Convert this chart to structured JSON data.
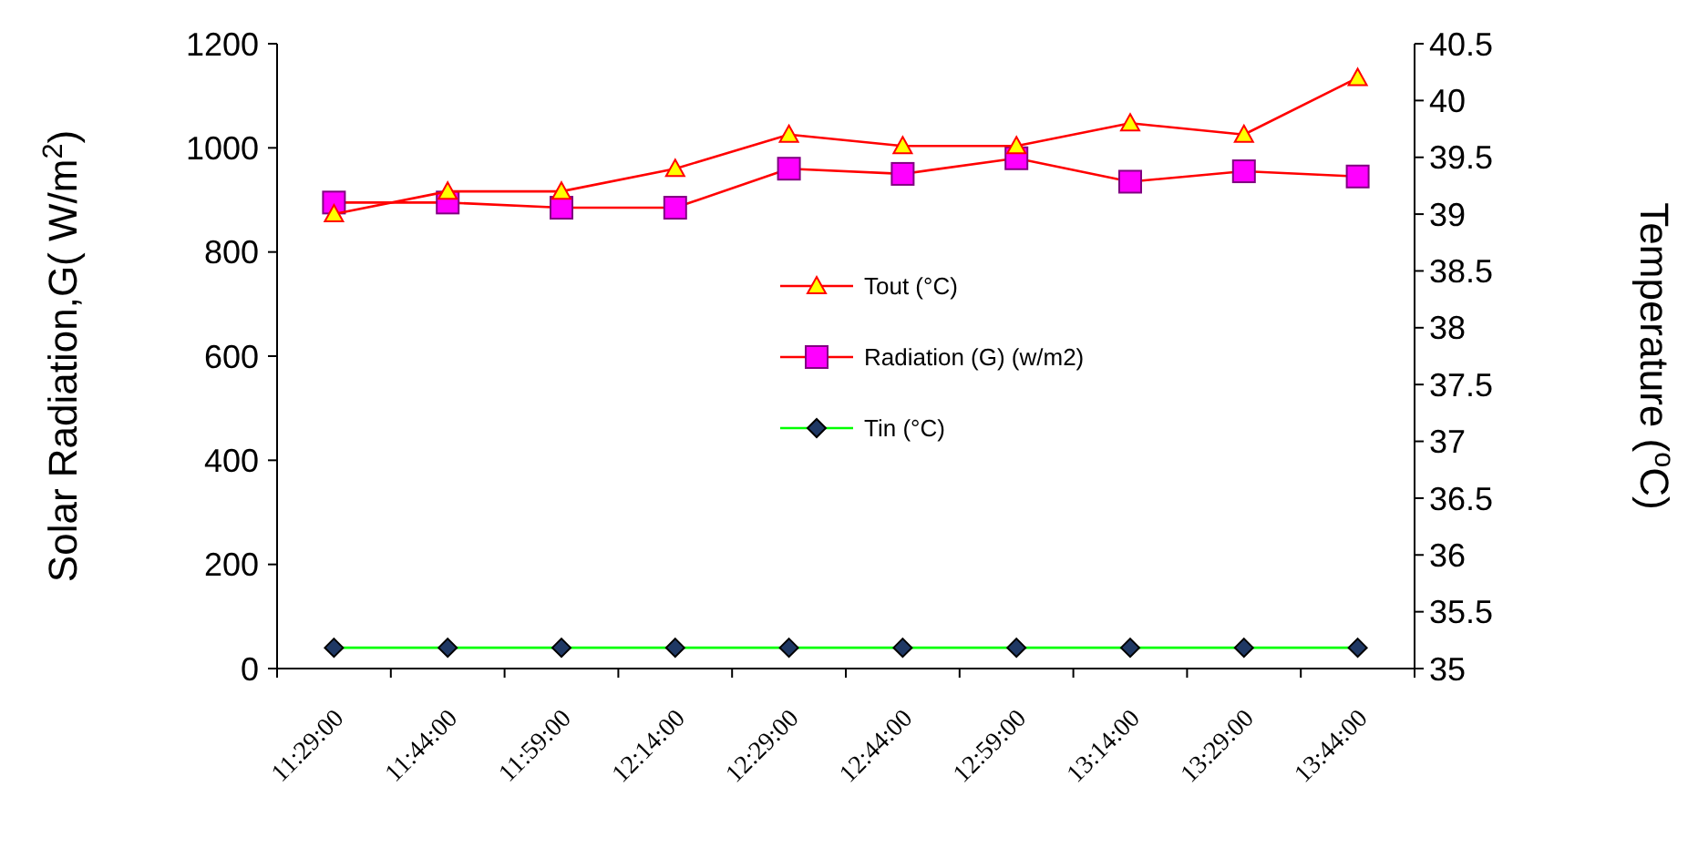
{
  "chart_data": {
    "type": "line",
    "categories": [
      "11:29:00",
      "11:44:00",
      "11:59:00",
      "12:14:00",
      "12:29:00",
      "12:44:00",
      "12:59:00",
      "13:14:00",
      "13:29:00",
      "13:44:00"
    ],
    "series": [
      {
        "name": "Tout (°C)",
        "color": "#ff0000",
        "marker": "triangle",
        "axis": "y2",
        "values": [
          39.0,
          39.2,
          39.2,
          39.4,
          39.7,
          39.6,
          39.6,
          39.8,
          39.7,
          40.2
        ]
      },
      {
        "name": "Radiation (G) (w/m2)",
        "color": "#ff0000",
        "marker": "square",
        "values": [
          895,
          895,
          885,
          885,
          960,
          950,
          980,
          935,
          955,
          945
        ]
      },
      {
        "name": "Tin (°C)",
        "color": "#00ff00",
        "marker": "diamond",
        "values": [
          40,
          40,
          40,
          40,
          40,
          40,
          40,
          40,
          40,
          40
        ]
      }
    ],
    "ylabel": "Solar Radiation,G( W/m$^{2}$)",
    "y2label": "Temperature ($^{o}$C)",
    "ylim": [
      0,
      1200
    ],
    "yticks": [
      0,
      200,
      400,
      600,
      800,
      1000,
      1200
    ],
    "y2lim": [
      35,
      40.5
    ],
    "y2ticks": [
      35,
      35.5,
      36,
      36.5,
      37,
      37.5,
      38,
      38.5,
      39,
      39.5,
      40,
      40.5
    ],
    "legend": "center",
    "grid": false
  }
}
